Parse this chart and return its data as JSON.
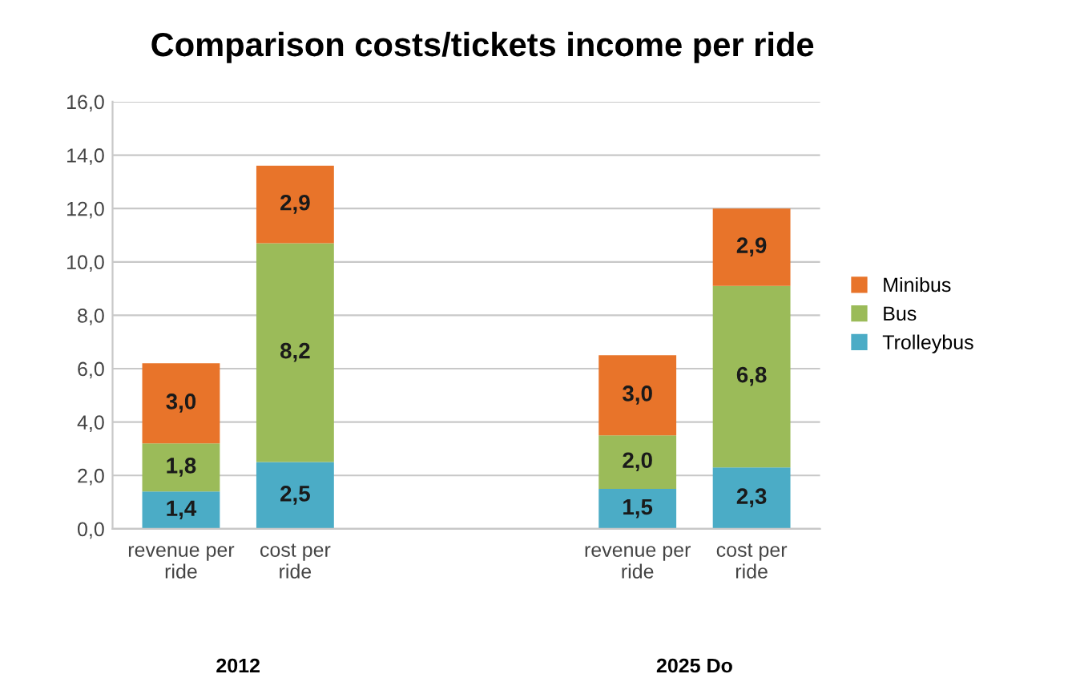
{
  "chart_data": {
    "type": "bar",
    "stacked": true,
    "title": "Comparison costs/tickets income per ride",
    "categories": [
      "revenue per ride",
      "cost per ride",
      null,
      null,
      "revenue per ride",
      "cost per ride"
    ],
    "series": [
      {
        "name": "Trolleybus",
        "color": "#4bacc6",
        "values": [
          1.4,
          2.5,
          null,
          null,
          1.5,
          2.3
        ],
        "value_labels": [
          "1,4",
          "2,5",
          null,
          null,
          "1,5",
          "2,3"
        ]
      },
      {
        "name": "Bus",
        "color": "#9bbb59",
        "values": [
          1.8,
          8.2,
          null,
          null,
          2.0,
          6.8
        ],
        "value_labels": [
          "1,8",
          "8,2",
          null,
          null,
          "2,0",
          "6,8"
        ]
      },
      {
        "name": "Minibus",
        "color": "#e8742a",
        "values": [
          3.0,
          2.9,
          null,
          null,
          3.0,
          2.9
        ],
        "value_labels": [
          "3,0",
          "2,9",
          null,
          null,
          "3,0",
          "2,9"
        ]
      }
    ],
    "ylim": [
      0,
      16
    ],
    "yticks": [
      {
        "value": 0,
        "label": "0,0"
      },
      {
        "value": 2,
        "label": "2,0"
      },
      {
        "value": 4,
        "label": "4,0"
      },
      {
        "value": 6,
        "label": "6,0"
      },
      {
        "value": 8,
        "label": "8,0"
      },
      {
        "value": 10,
        "label": "10,0"
      },
      {
        "value": 12,
        "label": "12,0"
      },
      {
        "value": 14,
        "label": "14,0"
      },
      {
        "value": 16,
        "label": "16,0"
      }
    ],
    "annotations": [
      "2012",
      "2025 Do"
    ],
    "grid": "y",
    "legend": "right"
  }
}
